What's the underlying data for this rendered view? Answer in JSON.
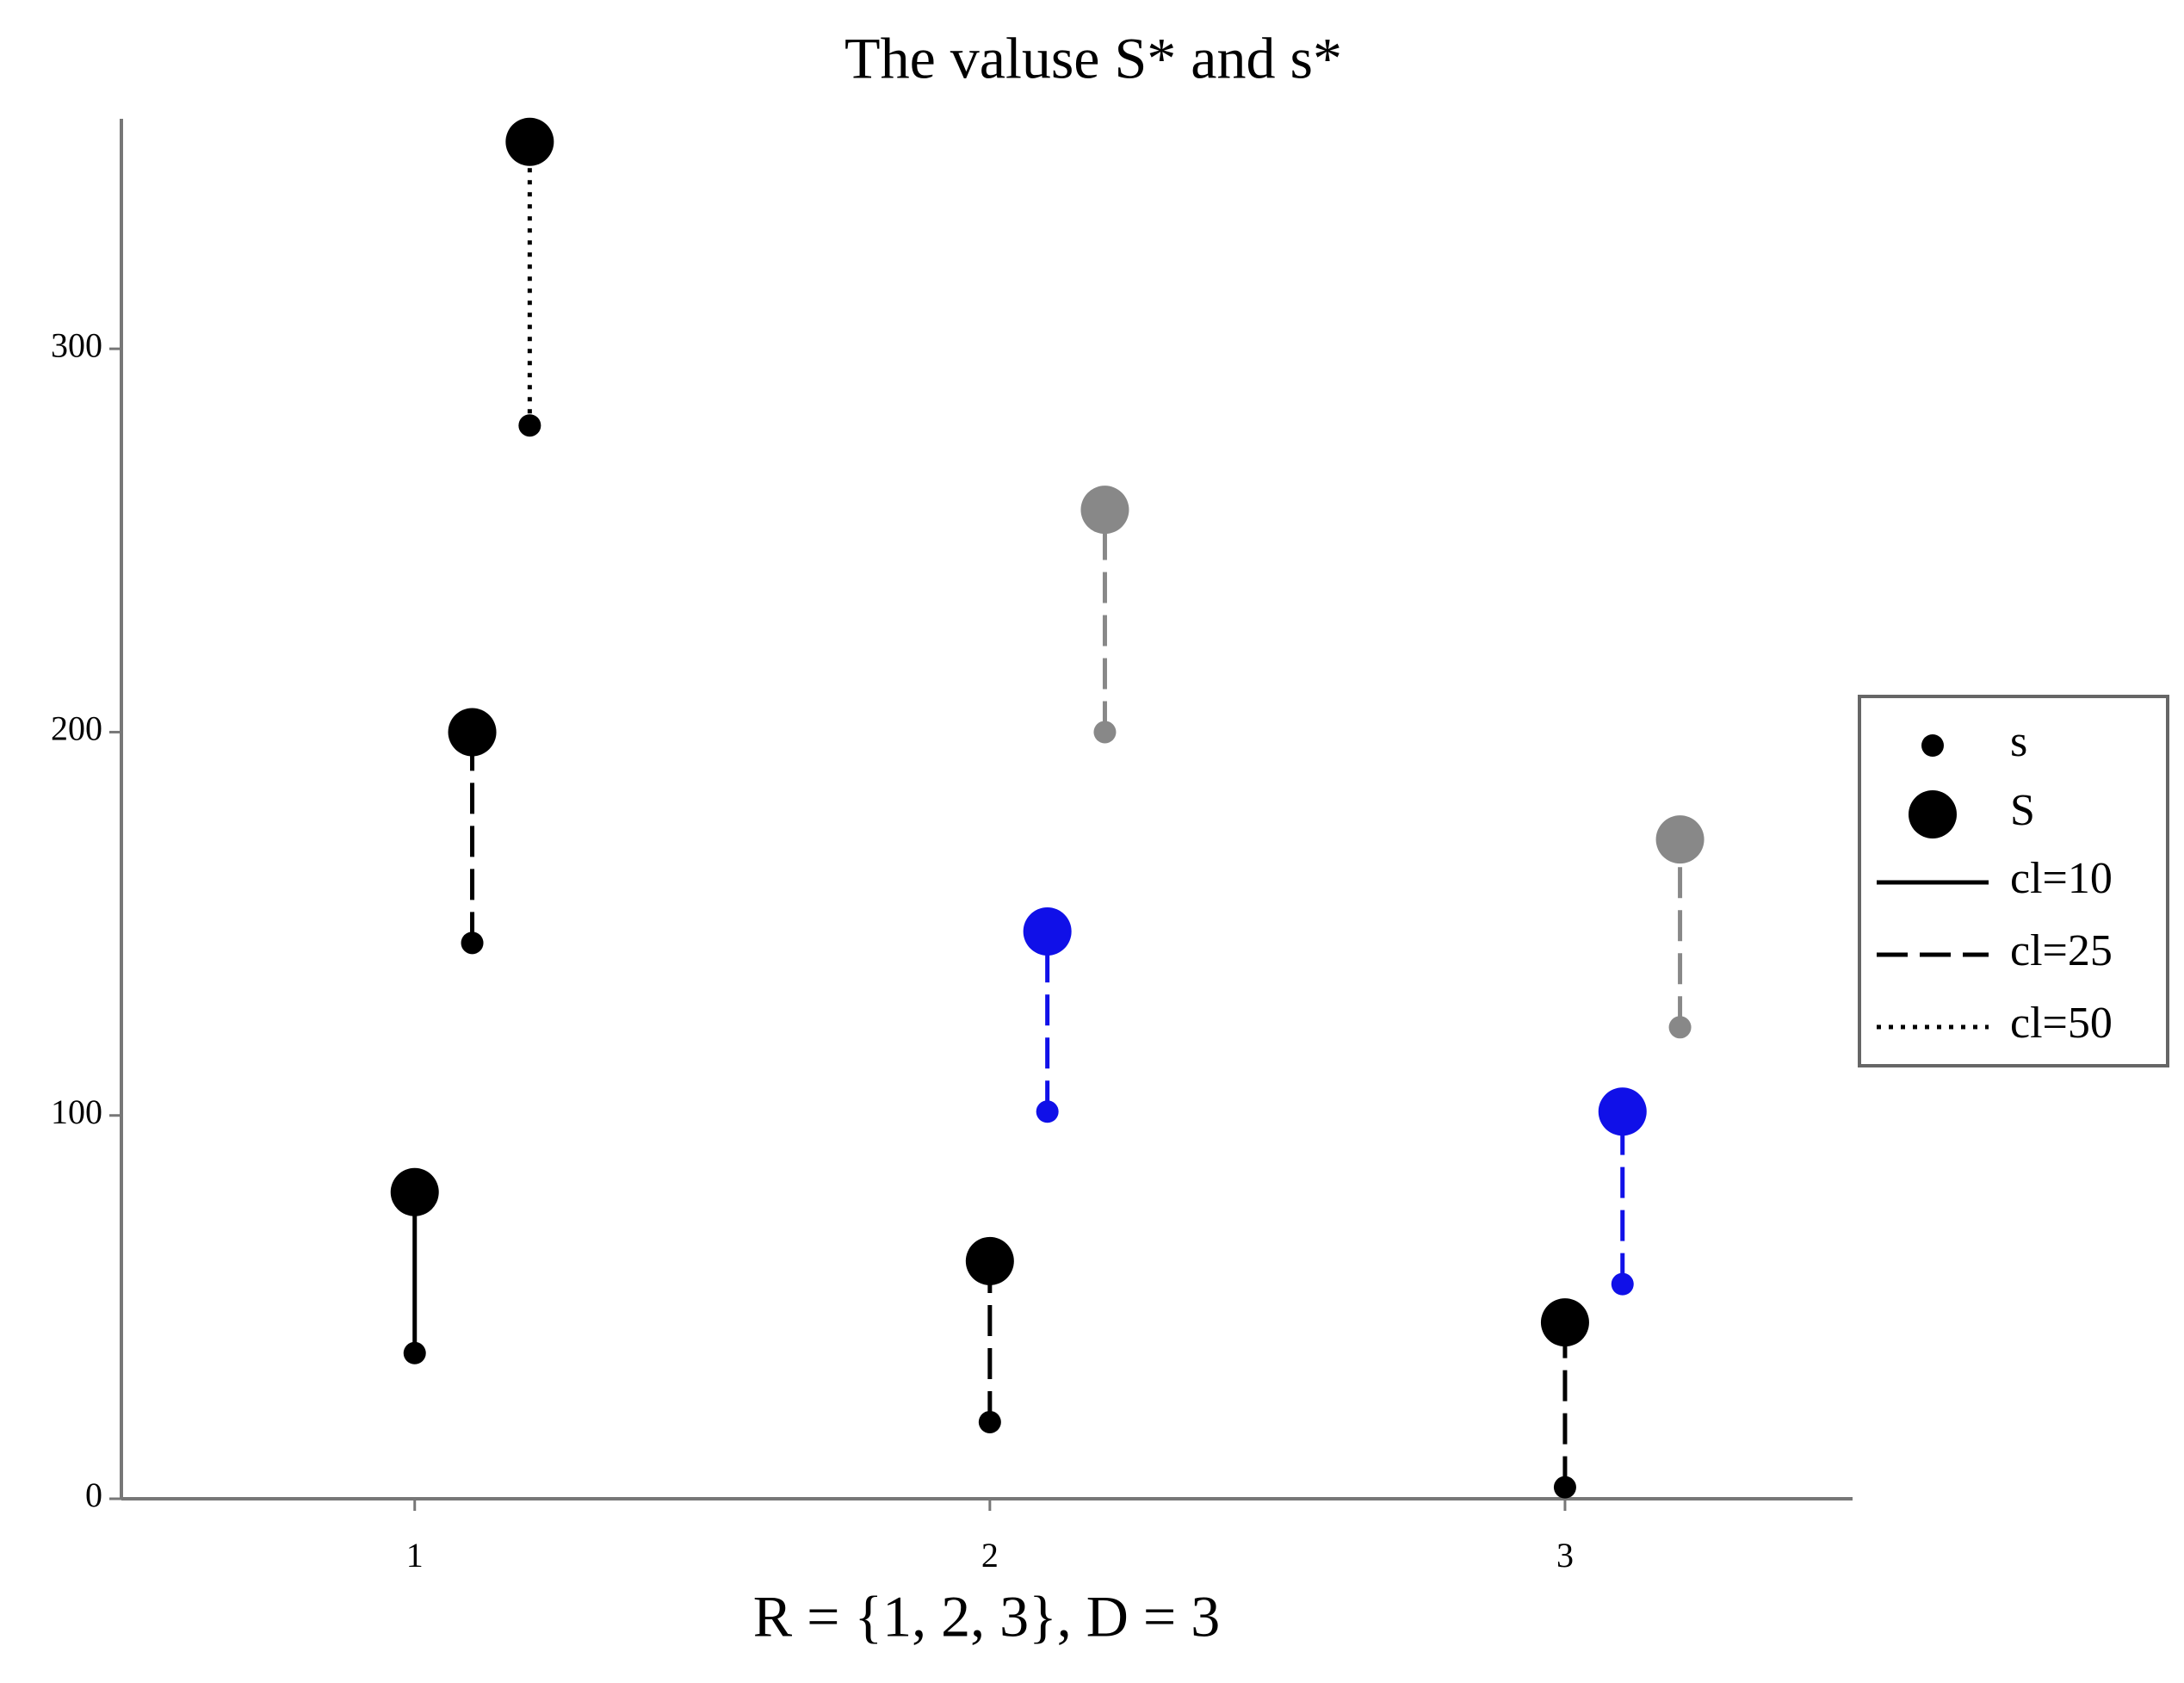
{
  "chart_data": {
    "type": "dumbbell",
    "title": "The valuse S* and s*",
    "x_label": "R = {1, 2, 3}, D = 3",
    "xlim": [
      0.49,
      3.5
    ],
    "xticks": [
      1,
      2,
      3
    ],
    "ylim": [
      0,
      360
    ],
    "yticks": [
      0,
      100,
      200,
      300
    ],
    "series": [
      {
        "x": 1,
        "s": 38,
        "S": 80,
        "color": "#000000",
        "dash": "solid"
      },
      {
        "x": 1.1,
        "s": 145,
        "S": 200,
        "color": "#000000",
        "dash": "dashed"
      },
      {
        "x": 1.2,
        "s": 280,
        "S": 354,
        "color": "#000000",
        "dash": "dotted"
      },
      {
        "x": 2,
        "s": 20,
        "S": 62,
        "color": "#000000",
        "dash": "dashed"
      },
      {
        "x": 2.1,
        "s": 101,
        "S": 148,
        "color": "#1010e8",
        "dash": "dashed"
      },
      {
        "x": 2.2,
        "s": 200,
        "S": 258,
        "color": "#888888",
        "dash": "dashed"
      },
      {
        "x": 3,
        "s": 3,
        "S": 46,
        "color": "#000000",
        "dash": "dashed"
      },
      {
        "x": 3.1,
        "s": 56,
        "S": 101,
        "color": "#1010e8",
        "dash": "dashed"
      },
      {
        "x": 3.2,
        "s": 123,
        "S": 172,
        "color": "#888888",
        "dash": "dashed"
      }
    ],
    "legend": {
      "position": "right",
      "markers": [
        {
          "label": "s",
          "size": "small"
        },
        {
          "label": "S",
          "size": "large"
        }
      ],
      "lines": [
        {
          "label": "cl=10",
          "dash": "solid"
        },
        {
          "label": "cl=25",
          "dash": "dashed"
        },
        {
          "label": "cl=50",
          "dash": "dotted"
        }
      ]
    }
  }
}
